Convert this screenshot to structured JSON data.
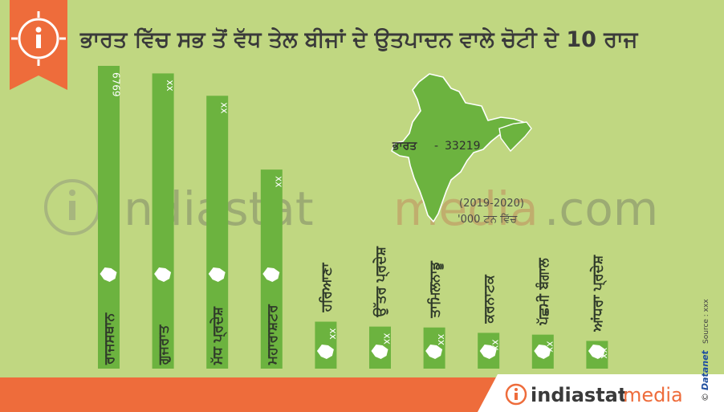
{
  "title": "ਭਾਰਤ ਵਿੱਚ ਸਭ ਤੋਂ ਵੱਧ ਤੇਲ ਬੀਜਾਂ ਦੇ ਉਤਪਾਦਨ ਵਾਲੇ ਚੋਟੀ ਦੇ 10 ਰਾਜ",
  "colors": {
    "background": "#c4da86",
    "bar": "#6cb33f",
    "title": "#3a3a3a",
    "accent": "#ee6c3b",
    "footer_bar": "#ee6c3b",
    "footer_panel": "#ffffff"
  },
  "india": {
    "label": "ਭਾਰਤ",
    "separator": "-",
    "value": "33219",
    "period": "(2019-2020)",
    "unit": "'000 ਟਨ ਵਿੱਚ"
  },
  "watermark": {
    "part1": "indiastat",
    "part2": "media",
    "part3": ".com"
  },
  "footer": {
    "logo_part1": "indiastat",
    "logo_part2": "media",
    "copyright": "©",
    "brand": "Datanet",
    "source": "Source : xxx"
  },
  "chart_data": {
    "type": "bar",
    "title": "ਭਾਰਤ ਵਿੱਚ ਸਭ ਤੋਂ ਵੱਧ ਤੇਲ ਬੀਜਾਂ ਦੇ ਉਤਪਾਦਨ ਵਾਲੇ ਚੋਟੀ ਦੇ 10 ਰਾਜ",
    "categories": [
      "ਰਾਜਸਥਾਨ",
      "ਗੁਜਰਾਤ",
      "ਮੱਧ ਪ੍ਰਦੇਸ਼",
      "ਮਹਾਰਾਸ਼ਟਰ",
      "ਹਰਿਆਣਾ",
      "ਉੱਤਰ ਪ੍ਰਦੇਸ਼",
      "ਤਾਮਿਲਨਾਡੂ",
      "ਕਰਨਾਟਕ",
      "ਪੱਛਮੀ ਬੰਗਾਲ",
      "ਆਂਧਰਾ ਪ੍ਰਦੇਸ਼"
    ],
    "value_labels": [
      "6769",
      "xx",
      "xx",
      "xx",
      "xx",
      "xx",
      "xx",
      "xx",
      "xx",
      "xx"
    ],
    "values": [
      6769,
      6600,
      6100,
      4450,
      1050,
      940,
      920,
      800,
      760,
      620
    ],
    "unit": "'000 ਟਨ ਵਿੱਚ",
    "period": "(2019-2020)",
    "total_label": "ਭਾਰਤ",
    "total_value": 33219
  }
}
